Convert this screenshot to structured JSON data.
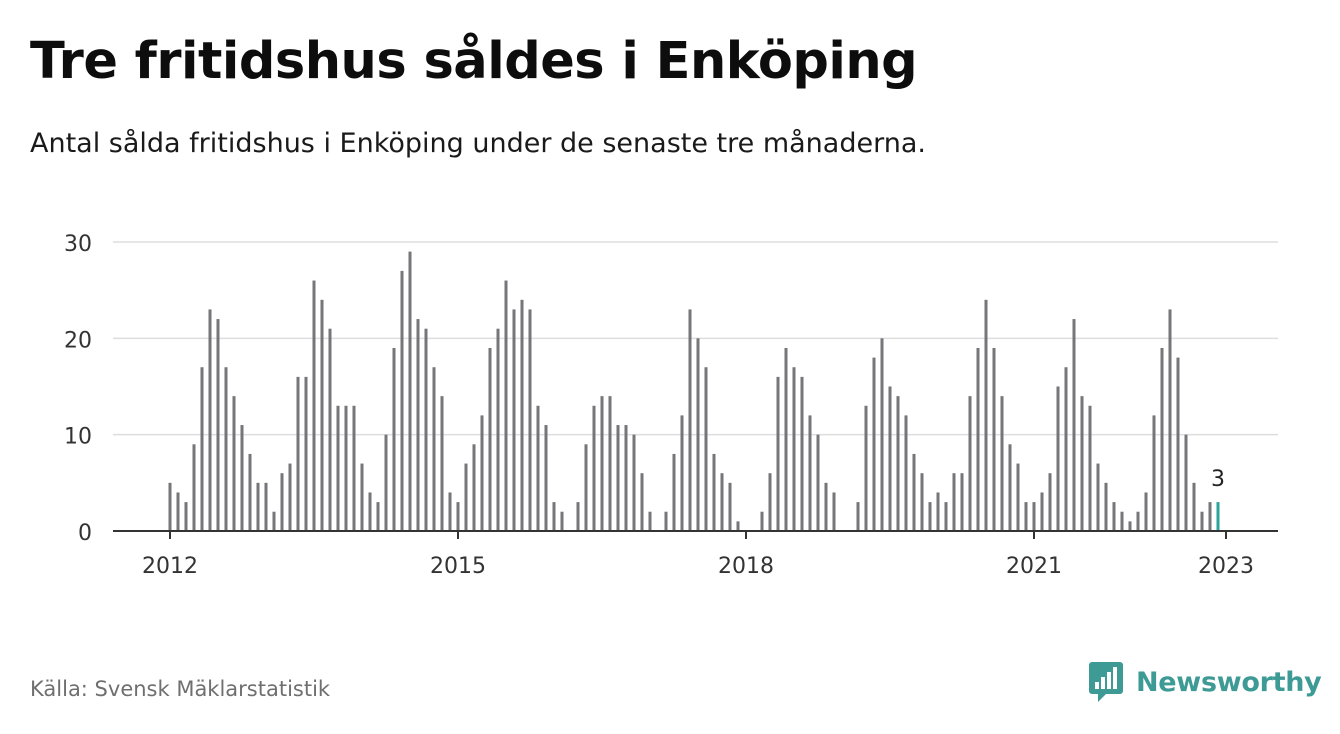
{
  "header": {
    "title": "Tre fritidshus såldes i Enköping",
    "subtitle": "Antal sålda fritidshus i Enköping under de senaste tre månaderna."
  },
  "footer": {
    "source": "Källa: Svensk Mäklarstatistik",
    "brand": "Newsworthy",
    "brand_icon": "newsworthy-logo-icon"
  },
  "colors": {
    "bar": "#75757a",
    "highlight": "#2aa39a",
    "grid": "#dddddd",
    "axis": "#333333",
    "brand": "#3d9a95"
  },
  "chart_data": {
    "type": "bar",
    "x_start": "2012-01",
    "x_end": "2023-01",
    "x_unit": "month",
    "ylim": [
      0,
      30
    ],
    "y_ticks": [
      0,
      10,
      20,
      30
    ],
    "x_ticks": [
      "2012",
      "2015",
      "2018",
      "2021",
      "2023"
    ],
    "grid": true,
    "highlight_label": "3",
    "values": [
      5,
      4,
      3,
      9,
      17,
      23,
      22,
      17,
      14,
      11,
      8,
      5,
      5,
      2,
      6,
      7,
      16,
      16,
      26,
      24,
      21,
      13,
      13,
      13,
      7,
      4,
      3,
      10,
      19,
      27,
      29,
      22,
      21,
      17,
      14,
      4,
      3,
      7,
      9,
      12,
      19,
      21,
      26,
      23,
      24,
      23,
      13,
      11,
      3,
      2,
      0,
      3,
      9,
      13,
      14,
      14,
      11,
      11,
      10,
      6,
      2,
      0,
      2,
      8,
      12,
      23,
      20,
      17,
      8,
      6,
      5,
      1,
      0,
      0,
      2,
      6,
      16,
      19,
      17,
      16,
      12,
      10,
      5,
      4,
      0,
      0,
      3,
      13,
      18,
      20,
      15,
      14,
      12,
      8,
      6,
      3,
      4,
      3,
      6,
      6,
      14,
      19,
      24,
      19,
      14,
      9,
      7,
      3,
      3,
      4,
      6,
      15,
      17,
      22,
      14,
      13,
      7,
      5,
      3,
      2,
      1,
      2,
      4,
      12,
      19,
      23,
      18,
      10,
      5,
      2,
      3,
      3
    ]
  }
}
